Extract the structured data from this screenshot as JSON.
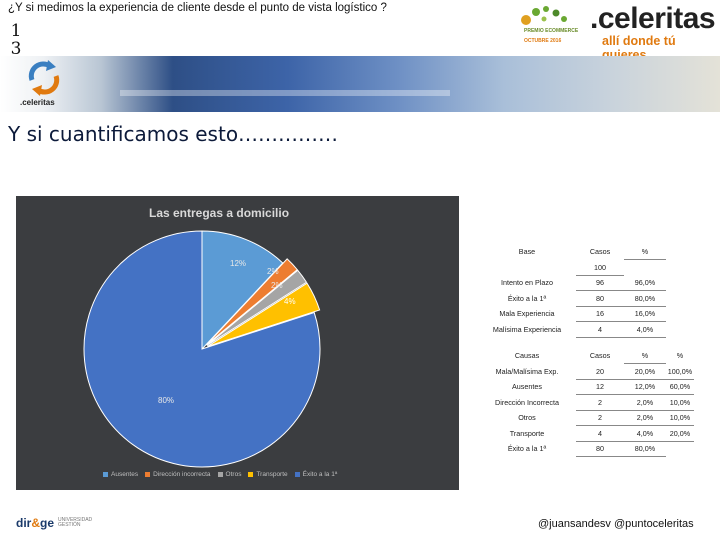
{
  "header": {
    "title": "¿Y si medimos la experiencia de cliente desde el punto de vista logístico ?",
    "slide_number_line1": "1",
    "slide_number_line2": "3"
  },
  "award": {
    "line1": "PREMIO ECOMMERCE",
    "line2": "OCTUBRE 2016"
  },
  "brand": {
    "name": ".celeritas",
    "tagline": "allí donde tú quieres"
  },
  "small_logo_caption": ".celeritas",
  "heading": "Y si cuantificamos esto……………",
  "chart_data": {
    "type": "pie",
    "title": "Las entregas a domicilio",
    "categories": [
      "Ausentes",
      "Dirección incorrecta",
      "Otros",
      "Transporte",
      "Éxito a la 1ª"
    ],
    "values": [
      12,
      2,
      2,
      4,
      80
    ],
    "data_labels": [
      "12%",
      "2%",
      "2%",
      "4%",
      "80%"
    ],
    "colors": [
      "#5b9bd5",
      "#ed7d31",
      "#a5a5a5",
      "#ffc000",
      "#4472c4"
    ],
    "legend_position": "bottom"
  },
  "table1": {
    "headers": [
      "Base",
      "Casos",
      "%"
    ],
    "base_value": "100",
    "rows": [
      [
        "Intento en Plazo",
        "96",
        "96,0%"
      ],
      [
        "Éxito a la 1ª",
        "80",
        "80,0%"
      ],
      [
        "Mala Experiencia",
        "16",
        "16,0%"
      ],
      [
        "Malísima Experiencia",
        "4",
        "4,0%"
      ]
    ]
  },
  "table2": {
    "headers": [
      "Causas",
      "Casos",
      "%",
      "%"
    ],
    "rows": [
      [
        "Mala/Malísima Exp.",
        "20",
        "20,0%",
        "100,0%"
      ],
      [
        "Ausentes",
        "12",
        "12,0%",
        "60,0%"
      ],
      [
        "Dirección Incorrecta",
        "2",
        "2,0%",
        "10,0%"
      ],
      [
        "Otros",
        "2",
        "2,0%",
        "10,0%"
      ],
      [
        "Transporte",
        "4",
        "4,0%",
        "20,0%"
      ],
      [
        "Éxito a la 1ª",
        "80",
        "80,0%",
        ""
      ]
    ]
  },
  "footer": {
    "dirge_a": "dir",
    "dirge_b": "&",
    "dirge_c": "ge",
    "dirge_sub1": "UNIVERSIDAD",
    "dirge_sub2": "GESTIÓN",
    "handles": "@juansandesv @puntoceleritas"
  }
}
